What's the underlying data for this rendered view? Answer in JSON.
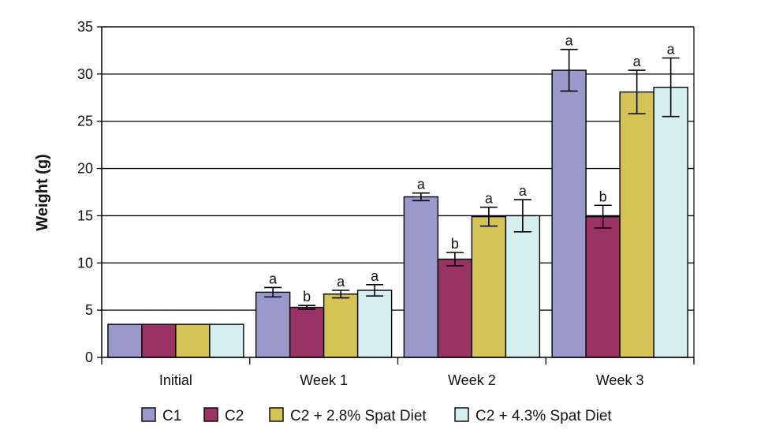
{
  "chart_data": {
    "type": "bar",
    "ylabel": "Weight (g)",
    "xlabel": "",
    "ylim": [
      0,
      35
    ],
    "yticks": [
      0,
      5,
      10,
      15,
      20,
      25,
      30,
      35
    ],
    "grid": "horizontal",
    "legend_position": "bottom",
    "categories": [
      "Initial",
      "Week 1",
      "Week 2",
      "Week 3"
    ],
    "series": [
      {
        "name": "C1",
        "color": "#9999cc",
        "values": [
          3.5,
          6.9,
          17.0,
          30.4
        ],
        "errors": [
          0,
          0.5,
          0.4,
          2.2
        ],
        "significance": [
          "",
          "a",
          "a",
          "a"
        ]
      },
      {
        "name": "C2",
        "color": "#993366",
        "values": [
          3.5,
          5.3,
          10.4,
          14.9
        ],
        "errors": [
          0,
          0.2,
          0.7,
          1.2
        ],
        "significance": [
          "",
          "b",
          "b",
          "b"
        ]
      },
      {
        "name": "C2 + 2.8% Spat Diet",
        "color": "#d4c455",
        "values": [
          3.5,
          6.7,
          14.9,
          28.1
        ],
        "errors": [
          0,
          0.4,
          1.0,
          2.3
        ],
        "significance": [
          "",
          "a",
          "a",
          "a"
        ]
      },
      {
        "name": "C2 + 4.3% Spat Diet",
        "color": "#d5eef0",
        "values": [
          3.5,
          7.1,
          15.0,
          28.6
        ],
        "errors": [
          0,
          0.6,
          1.7,
          3.1
        ],
        "significance": [
          "",
          "a",
          "a",
          "a"
        ]
      }
    ]
  }
}
